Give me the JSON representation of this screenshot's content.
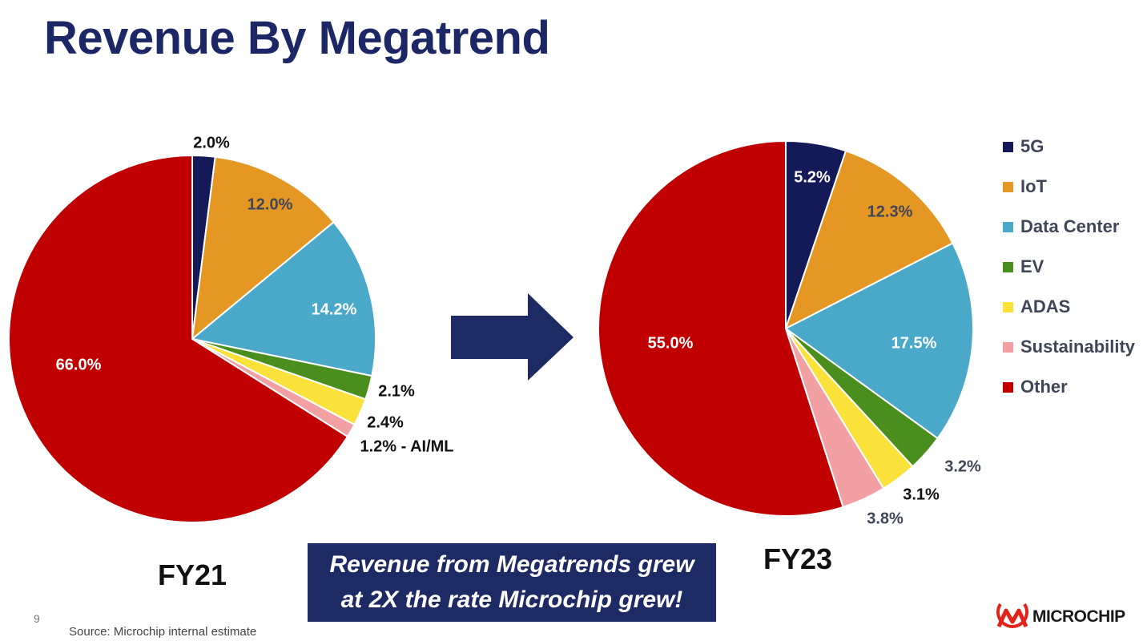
{
  "title": "Revenue By Megatrend",
  "legend": [
    {
      "label": "5G",
      "color": "#141a57"
    },
    {
      "label": "IoT",
      "color": "#e49723"
    },
    {
      "label": "Data Center",
      "color": "#4aa8c8"
    },
    {
      "label": "EV",
      "color": "#4a8f1d"
    },
    {
      "label": "ADAS",
      "color": "#fbe23a"
    },
    {
      "label": "Sustainability",
      "color": "#f2a0a4"
    },
    {
      "label": "Other",
      "color": "#c00000"
    }
  ],
  "chart_data": [
    {
      "type": "pie",
      "title": "FY21",
      "categories": [
        "5G",
        "IoT",
        "Data Center",
        "EV",
        "ADAS",
        "Sustainability",
        "Other"
      ],
      "values": [
        2.0,
        12.0,
        14.2,
        2.1,
        2.4,
        1.2,
        66.0
      ],
      "labels": [
        "2.0%",
        "12.0%",
        "14.2%",
        "2.1%",
        "2.4%",
        "1.2% - AI/ML",
        "66.0%"
      ]
    },
    {
      "type": "pie",
      "title": "FY23",
      "categories": [
        "5G",
        "IoT",
        "Data Center",
        "EV",
        "ADAS",
        "Sustainability",
        "Other"
      ],
      "values": [
        5.2,
        12.3,
        17.5,
        3.2,
        3.1,
        3.8,
        55.0
      ],
      "labels": [
        "5.2%",
        "12.3%",
        "17.5%",
        "3.2%",
        "3.1%",
        "3.8%",
        "55.0%"
      ]
    }
  ],
  "callout": {
    "line1": "Revenue from Megatrends grew",
    "line2": "at 2X the rate Microchip grew!"
  },
  "page_number": "9",
  "source": "Source: Microchip internal estimate",
  "brand": "MICROCHIP",
  "colors": {
    "title": "#1c2766",
    "arrow": "#1d2a63",
    "callout_bg": "#1d2a63"
  }
}
